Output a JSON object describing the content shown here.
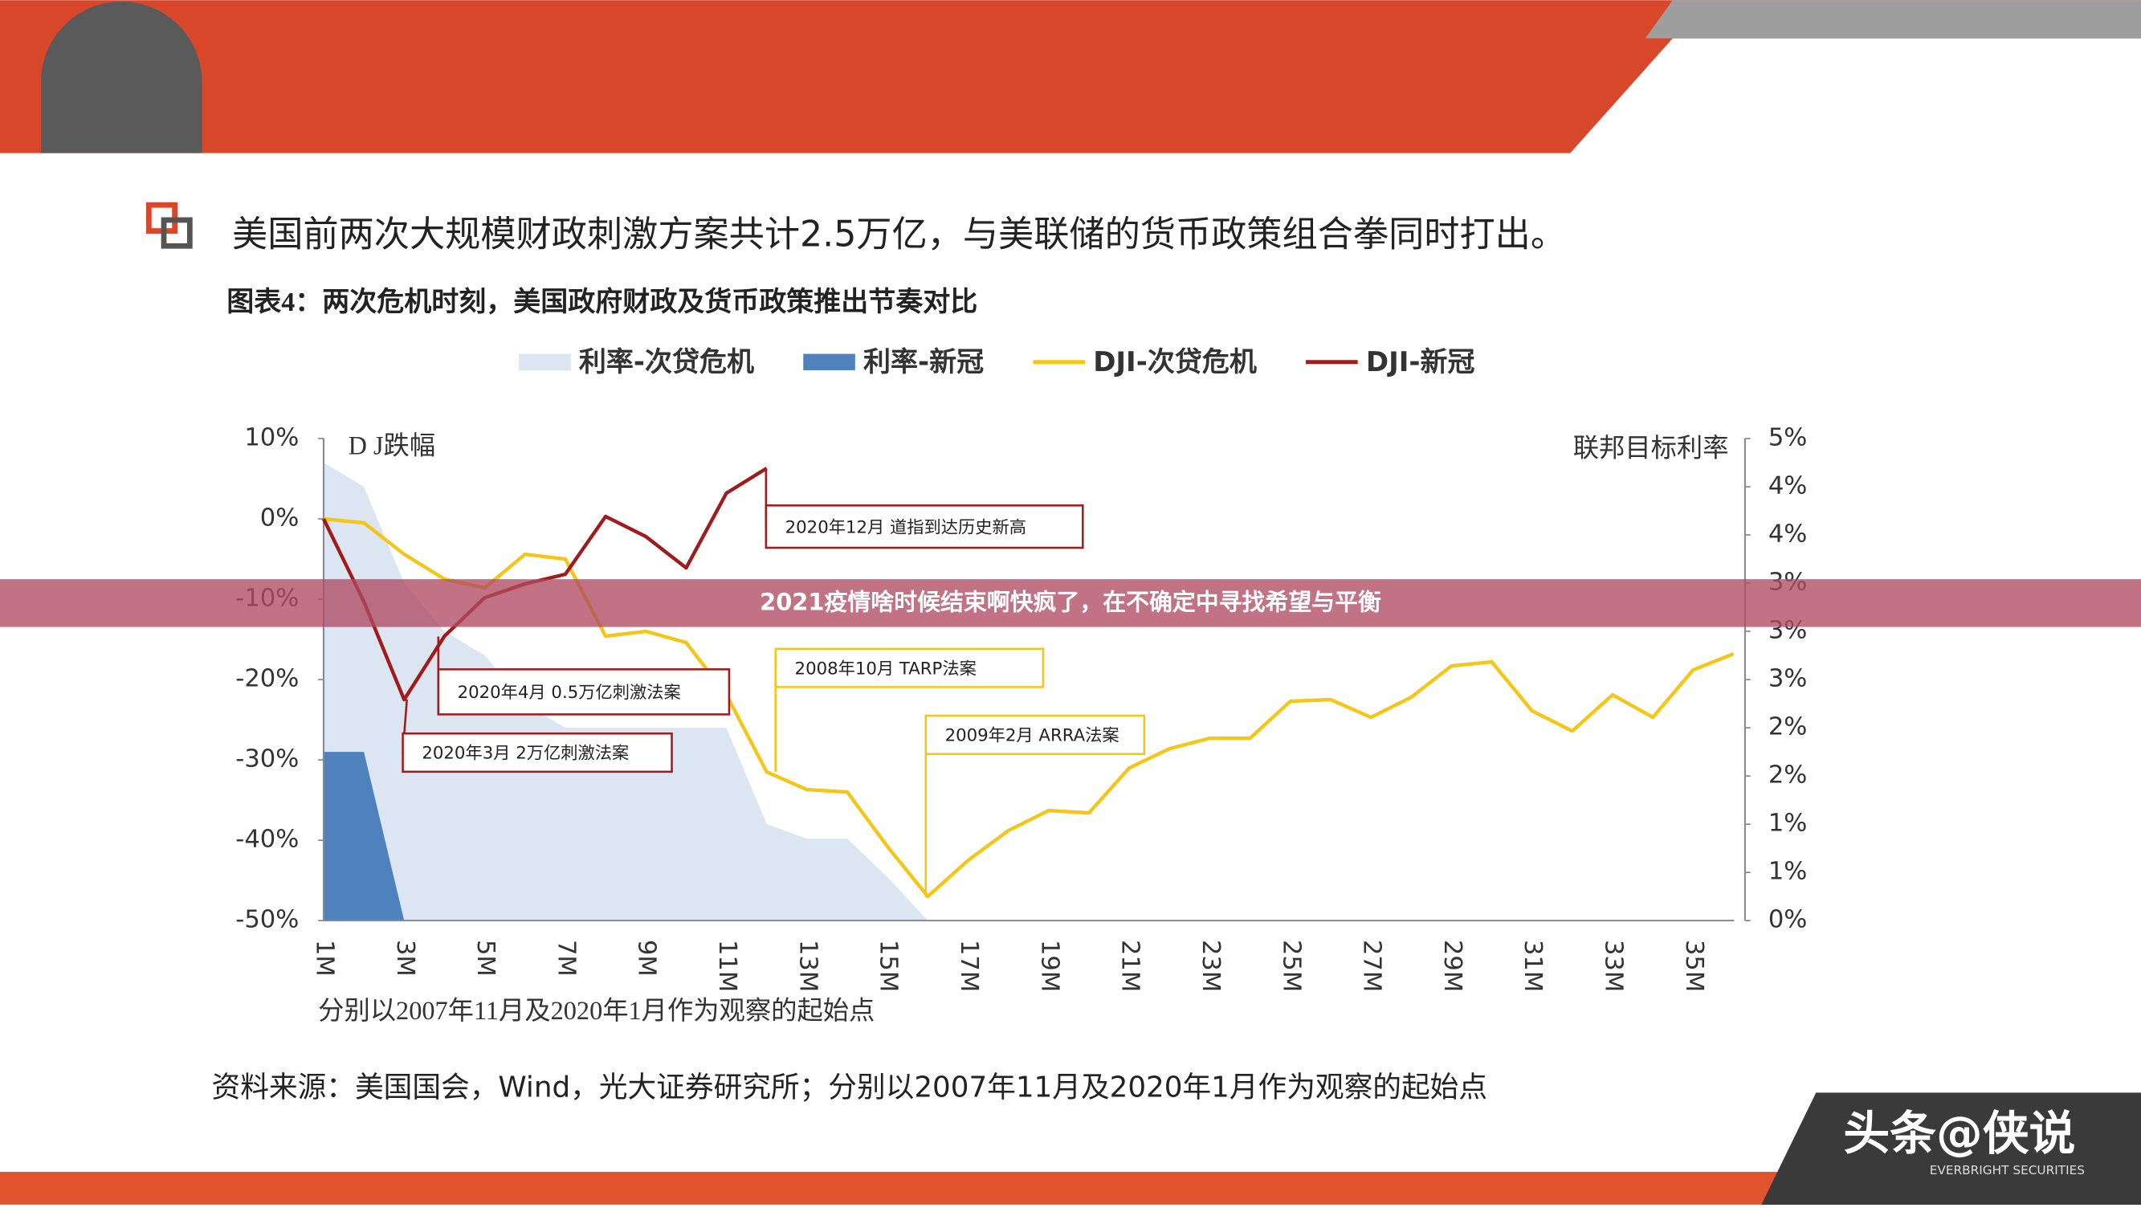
{
  "header": {
    "title": "美国前两次大规模财政刺激方案共计2.5万亿，与美联储的货币政策组合拳同时打出。"
  },
  "chart_data": {
    "type": "combo",
    "title": "图表4：两次危机时刻，美国政府财政及货币政策推出节奏对比",
    "ylabel": "D J跌幅",
    "y2label": "联邦目标利率",
    "note": "分别以2007年11月及2020年1月作为观察的起始点",
    "categories": [
      "1M",
      null,
      "3M",
      null,
      "5M",
      null,
      "7M",
      null,
      "9M",
      null,
      "11M",
      null,
      "13M",
      null,
      "15M",
      null,
      "17M",
      null,
      "19M",
      null,
      "21M",
      null,
      "23M",
      null,
      "25M",
      null,
      "27M",
      null,
      "29M",
      null,
      "31M",
      null,
      "33M",
      null,
      "35M",
      null
    ],
    "ylim": [
      -50,
      10
    ],
    "yticks": [
      {
        "value": -50,
        "label": "-50%"
      },
      {
        "value": -40,
        "label": "-40%"
      },
      {
        "value": -30,
        "label": "-30%"
      },
      {
        "value": -20,
        "label": "-20%"
      },
      {
        "value": -10,
        "label": "-10%"
      },
      {
        "value": 0,
        "label": "0%"
      },
      {
        "value": 10,
        "label": "10%"
      }
    ],
    "y2lim": [
      0,
      5
    ],
    "y2ticks": [
      {
        "value": 0,
        "label": "0%"
      },
      {
        "value": 0.5,
        "label": "1%"
      },
      {
        "value": 1,
        "label": "1%"
      },
      {
        "value": 1.5,
        "label": "2%"
      },
      {
        "value": 2,
        "label": "2%"
      },
      {
        "value": 2.5,
        "label": "3%"
      },
      {
        "value": 3,
        "label": "3%"
      },
      {
        "value": 3.5,
        "label": "3%"
      },
      {
        "value": 4,
        "label": "4%"
      },
      {
        "value": 4.5,
        "label": "4%"
      },
      {
        "value": 5,
        "label": "5%"
      }
    ],
    "series": [
      {
        "name": "利率-次贷危机",
        "kind": "area",
        "axis": "y2",
        "color": "#dce6f2",
        "values": [
          4.75,
          4.5,
          3.5,
          3.0,
          2.75,
          2.25,
          2.0,
          2.0,
          2.0,
          2.0,
          2.0,
          1.0,
          0.85,
          0.85,
          0.45,
          0,
          0,
          0,
          0,
          0,
          0,
          0,
          0,
          0,
          0,
          0,
          0,
          0,
          0,
          0,
          0,
          0,
          0,
          0,
          0,
          0
        ]
      },
      {
        "name": "利率-新冠",
        "kind": "area",
        "axis": "y2",
        "color": "#4f81bd",
        "values": [
          1.75,
          1.75,
          0,
          null,
          null,
          null,
          null,
          null,
          null,
          null,
          null,
          null,
          null,
          null,
          null,
          null,
          null,
          null,
          null,
          null,
          null,
          null,
          null,
          null,
          null,
          null,
          null,
          null,
          null,
          null,
          null,
          null,
          null,
          null,
          null,
          null
        ]
      },
      {
        "name": "DJI-次贷危机",
        "kind": "line",
        "color": "#f5c518",
        "values": [
          0,
          -0.5,
          -4.4,
          -7.5,
          -8.6,
          -4.4,
          -5,
          -14.6,
          -14,
          -15.4,
          -21.9,
          -31.5,
          -33.7,
          -34,
          -40.8,
          -47,
          -42.5,
          -38.8,
          -36.3,
          -36.6,
          -31,
          -28.6,
          -27.3,
          -27.3,
          -22.7,
          -22.5,
          -24.7,
          -22.2,
          -18.3,
          -17.8,
          -23.9,
          -26.4,
          -21.9,
          -24.7,
          -18.8,
          -16.8
        ]
      },
      {
        "name": "DJI-新冠",
        "kind": "line",
        "color": "#a01c1c",
        "values": [
          0,
          -10.3,
          -22.5,
          -14.6,
          -9.8,
          -8.1,
          -6.9,
          0.3,
          -2.2,
          -6.1,
          3.2,
          6.3,
          null,
          null,
          null,
          null,
          null,
          null,
          null,
          null,
          null,
          null,
          null,
          null,
          null,
          null,
          null,
          null,
          null,
          null,
          null,
          null,
          null,
          null,
          null,
          null
        ]
      }
    ],
    "annotations": [
      {
        "text": "2020年12月  道指到达历史新高",
        "color": "#a01c1c"
      },
      {
        "text": "2020年4月  0.5万亿刺激法案",
        "color": "#a01c1c"
      },
      {
        "text": "2020年3月  2万亿刺激法案",
        "color": "#a01c1c"
      },
      {
        "text": "2008年10月  TARP法案",
        "color": "#f5c518"
      },
      {
        "text": "2009年2月  ARRA法案",
        "color": "#f5c518"
      }
    ]
  },
  "source": "资料来源：美国国会，Wind，光大证券研究所；分别以2007年11月及2020年1月作为观察的起始点",
  "banner": "2021疫情啥时候结束啊快疯了，在不确定中寻找希望与平衡",
  "watermark": {
    "logo": "头条@侠说",
    "company": "EVERBRIGHT SECURITIES"
  }
}
